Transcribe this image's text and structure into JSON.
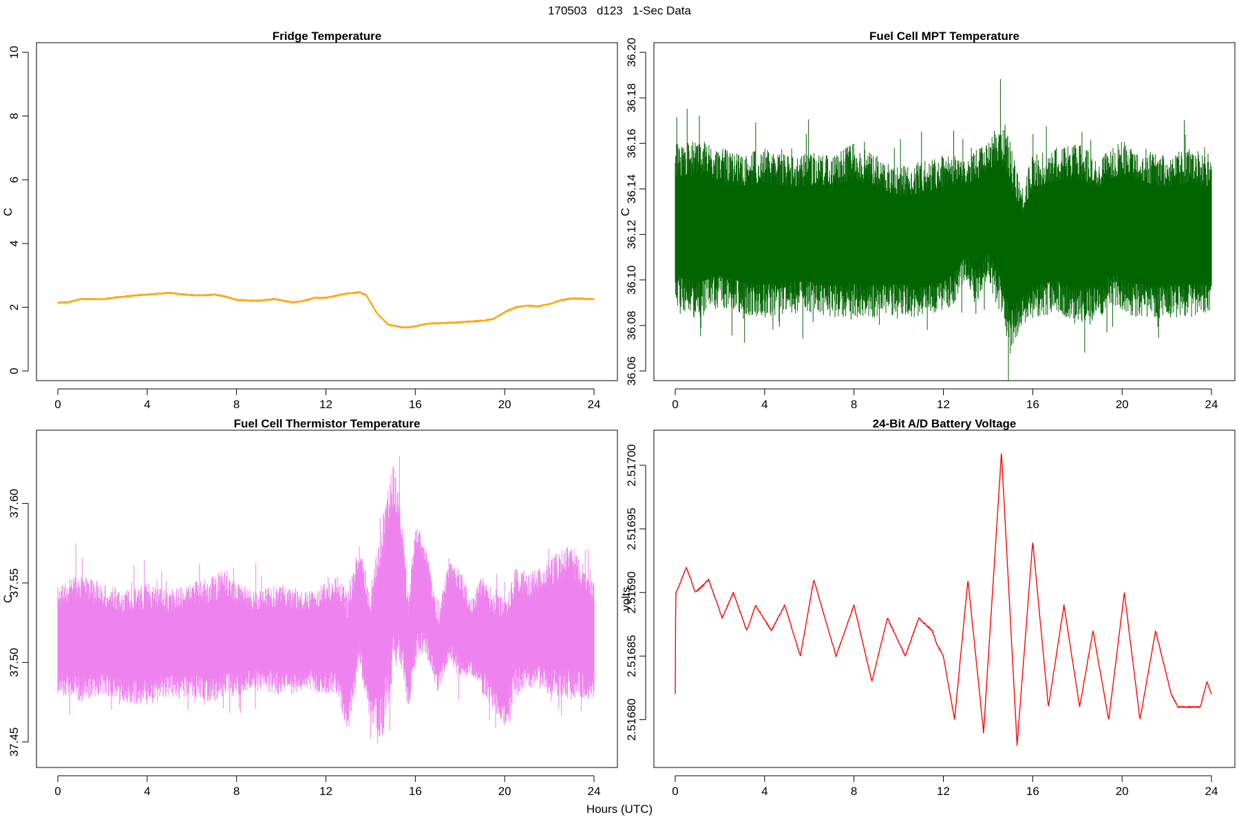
{
  "suptitle": "170503   d123   1-Sec Data",
  "global_xlabel": "Hours (UTC)",
  "chart_data": [
    {
      "type": "line",
      "title": "Fridge Temperature",
      "xlabel": "",
      "ylabel": "C",
      "color": "#FFA500",
      "xlim": [
        0,
        24
      ],
      "ylim": [
        0,
        10
      ],
      "xticks": [
        0,
        4,
        8,
        12,
        16,
        20,
        24
      ],
      "yticks": [
        0,
        2,
        4,
        6,
        8,
        10
      ],
      "ytick_labels": [
        "0",
        "2",
        "4",
        "6",
        "8",
        "10"
      ],
      "noise": 0.015,
      "x": [
        0,
        0.5,
        1,
        2,
        2.5,
        3,
        4,
        5,
        6,
        6.5,
        7,
        7.5,
        8,
        9,
        9.7,
        10.5,
        11,
        11.5,
        12,
        12.5,
        13,
        13.5,
        13.8,
        14.3,
        14.8,
        15.5,
        16,
        16.5,
        17,
        18,
        19,
        19.5,
        20,
        20.5,
        21,
        21.5,
        22,
        22.5,
        23,
        23.5,
        24
      ],
      "values": [
        2.14,
        2.16,
        2.26,
        2.25,
        2.3,
        2.34,
        2.4,
        2.45,
        2.38,
        2.37,
        2.4,
        2.34,
        2.23,
        2.2,
        2.26,
        2.15,
        2.2,
        2.3,
        2.3,
        2.37,
        2.44,
        2.47,
        2.38,
        1.8,
        1.45,
        1.36,
        1.4,
        1.48,
        1.5,
        1.53,
        1.58,
        1.63,
        1.85,
        2.0,
        2.05,
        2.03,
        2.1,
        2.22,
        2.28,
        2.27,
        2.25
      ]
    },
    {
      "type": "line",
      "title": "Fuel Cell MPT Temperature",
      "xlabel": "",
      "ylabel": "C",
      "color": "#006400",
      "xlim": [
        0,
        24
      ],
      "ylim": [
        36.06,
        36.2
      ],
      "xticks": [
        0,
        4,
        8,
        12,
        16,
        20,
        24
      ],
      "yticks": [
        36.06,
        36.08,
        36.1,
        36.12,
        36.14,
        36.16,
        36.18,
        36.2
      ],
      "ytick_labels": [
        "36.06",
        "36.08",
        "36.10",
        "36.12",
        "36.14",
        "36.16",
        "36.18",
        "36.20"
      ],
      "x": [
        0,
        1,
        2,
        3,
        4,
        5,
        6,
        7,
        8,
        9,
        10,
        11,
        12,
        12.5,
        13,
        13.5,
        14,
        14.5,
        15,
        15.5,
        16,
        17,
        18,
        19,
        19.5,
        20,
        21,
        22,
        23,
        24
      ],
      "upper": [
        36.16,
        36.162,
        36.158,
        36.155,
        36.158,
        36.155,
        36.156,
        36.155,
        36.16,
        36.155,
        36.15,
        36.152,
        36.155,
        36.155,
        36.152,
        36.158,
        36.16,
        36.17,
        36.162,
        36.14,
        36.155,
        36.158,
        36.16,
        36.155,
        36.158,
        36.162,
        36.158,
        36.155,
        36.158,
        36.155
      ],
      "lower": [
        36.088,
        36.083,
        36.088,
        36.085,
        36.083,
        36.085,
        36.085,
        36.083,
        36.083,
        36.083,
        36.085,
        36.083,
        36.085,
        36.09,
        36.1,
        36.09,
        36.1,
        36.085,
        36.067,
        36.08,
        36.083,
        36.085,
        36.08,
        36.083,
        36.09,
        36.085,
        36.083,
        36.083,
        36.083,
        36.085
      ]
    },
    {
      "type": "line",
      "title": "Fuel Cell Thermistor Temperature",
      "xlabel": "",
      "ylabel": "C",
      "color": "#EE82EE",
      "xlim": [
        0,
        24
      ],
      "ylim": [
        37.44,
        37.64
      ],
      "xticks": [
        0,
        4,
        8,
        12,
        16,
        20,
        24
      ],
      "yticks": [
        37.45,
        37.5,
        37.55,
        37.6
      ],
      "ytick_labels": [
        "37.45",
        "37.50",
        "37.55",
        "37.60"
      ],
      "x": [
        0,
        1,
        2,
        3,
        4,
        5,
        6,
        7,
        7.5,
        8,
        9,
        10,
        11,
        12,
        12.5,
        13,
        13.5,
        14,
        14.5,
        15,
        15.3,
        15.7,
        16,
        16.5,
        17,
        17.5,
        18,
        18.5,
        19,
        19.5,
        20,
        20.5,
        21,
        22,
        23,
        24
      ],
      "upper": [
        37.55,
        37.555,
        37.55,
        37.545,
        37.55,
        37.545,
        37.55,
        37.555,
        37.56,
        37.55,
        37.545,
        37.55,
        37.545,
        37.55,
        37.555,
        37.545,
        37.575,
        37.545,
        37.59,
        37.625,
        37.61,
        37.54,
        37.59,
        37.575,
        37.53,
        37.565,
        37.56,
        37.54,
        37.555,
        37.545,
        37.54,
        37.56,
        37.555,
        37.565,
        37.575,
        37.55
      ],
      "lower": [
        37.48,
        37.475,
        37.48,
        37.475,
        37.473,
        37.478,
        37.478,
        37.473,
        37.48,
        37.478,
        37.485,
        37.478,
        37.482,
        37.48,
        37.478,
        37.455,
        37.5,
        37.46,
        37.45,
        37.49,
        37.5,
        37.47,
        37.5,
        37.505,
        37.48,
        37.5,
        37.49,
        37.49,
        37.48,
        37.47,
        37.46,
        37.48,
        37.485,
        37.48,
        37.475,
        37.478
      ]
    },
    {
      "type": "line",
      "title": "24-Bit A/D Battery Voltage",
      "xlabel": "",
      "ylabel": "volts",
      "color": "#FF0000",
      "xlim": [
        0,
        24
      ],
      "ylim": [
        2.51677,
        2.51702
      ],
      "xticks": [
        0,
        4,
        8,
        12,
        16,
        20,
        24
      ],
      "yticks": [
        2.5168,
        2.51685,
        2.5169,
        2.51695,
        2.517
      ],
      "ytick_labels": [
        "2.51680",
        "2.51685",
        "2.51690",
        "2.51695",
        "2.51700"
      ],
      "noise": 6e-07,
      "x": [
        0,
        0.02,
        0.05,
        0.5,
        0.9,
        1.5,
        2.1,
        2.6,
        3.2,
        3.6,
        4.3,
        4.9,
        5.6,
        6.2,
        7.2,
        8.0,
        8.8,
        9.5,
        10.3,
        10.9,
        11.5,
        11.7,
        12.0,
        12.5,
        13.1,
        13.8,
        14.6,
        15.3,
        16.0,
        16.7,
        17.4,
        18.1,
        18.7,
        19.4,
        20.1,
        20.8,
        21.5,
        22.2,
        22.5,
        22.9,
        23.2,
        23.5,
        23.8,
        24
      ],
      "values": [
        2.51682,
        2.5169,
        2.5169,
        2.51692,
        2.5169,
        2.51691,
        2.51688,
        2.5169,
        2.51687,
        2.51689,
        2.51687,
        2.51689,
        2.51685,
        2.51691,
        2.51685,
        2.51689,
        2.51683,
        2.51688,
        2.51685,
        2.51688,
        2.51687,
        2.51686,
        2.51685,
        2.5168,
        2.51691,
        2.51679,
        2.51701,
        2.51678,
        2.51694,
        2.51681,
        2.51689,
        2.51681,
        2.51687,
        2.5168,
        2.5169,
        2.5168,
        2.51687,
        2.51682,
        2.51681,
        2.51681,
        2.51681,
        2.51681,
        2.51683,
        2.51682
      ]
    }
  ]
}
